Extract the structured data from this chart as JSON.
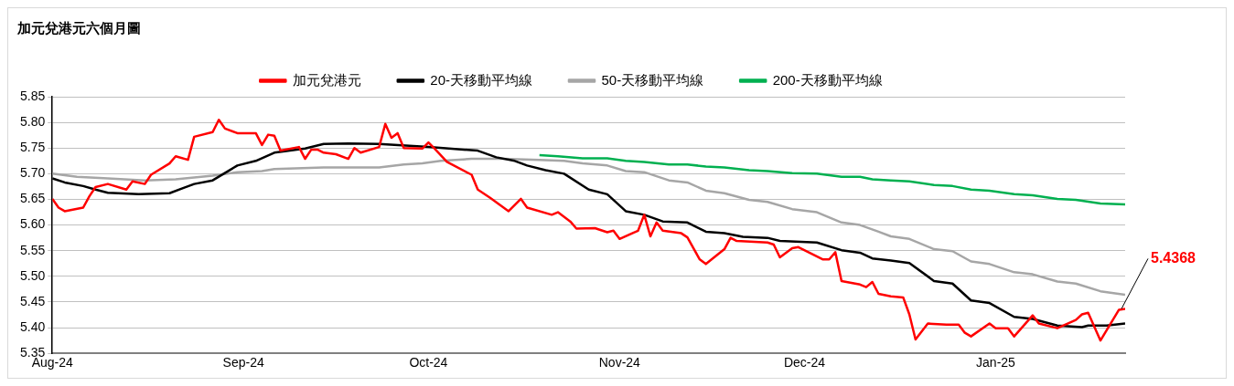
{
  "chart_data": {
    "type": "line",
    "title": "加元兌港元六個月圖",
    "legend": "top",
    "grid": "y",
    "marker": "none",
    "line_style": "solid",
    "xlim": [
      "2024-08-01",
      "2025-01-22"
    ],
    "xticks": [
      {
        "value": "2024-08-01",
        "label": "Aug-24"
      },
      {
        "value": "2024-09-01",
        "label": "Sep-24"
      },
      {
        "value": "2024-10-01",
        "label": "Oct-24"
      },
      {
        "value": "2024-11-01",
        "label": "Nov-24"
      },
      {
        "value": "2024-12-01",
        "label": "Dec-24"
      },
      {
        "value": "2025-01-01",
        "label": "Jan-25"
      }
    ],
    "ylim": [
      5.35,
      5.85
    ],
    "yticks": [
      5.35,
      {
        "value": 5.4,
        "label": "5.40"
      },
      5.45,
      {
        "value": 5.5,
        "label": "5.50"
      },
      5.55,
      {
        "value": 5.6,
        "label": "5.60"
      },
      5.65,
      {
        "value": 5.7,
        "label": "5.70"
      },
      5.75,
      {
        "value": 5.8,
        "label": "5.80"
      },
      5.85
    ],
    "annotations": [
      {
        "text": "5.4368",
        "x": "2025-01-22",
        "y": 5.4368
      }
    ],
    "series": [
      {
        "name": "加元兌港元",
        "color": "#ff0000",
        "x": [
          "2024-08-01",
          "2024-08-02",
          "2024-08-03",
          "2024-08-06",
          "2024-08-07",
          "2024-08-08",
          "2024-08-10",
          "2024-08-13",
          "2024-08-14",
          "2024-08-16",
          "2024-08-17",
          "2024-08-20",
          "2024-08-21",
          "2024-08-23",
          "2024-08-24",
          "2024-08-27",
          "2024-08-28",
          "2024-08-29",
          "2024-08-31",
          "2024-09-03",
          "2024-09-04",
          "2024-09-05",
          "2024-09-06",
          "2024-09-07",
          "2024-09-10",
          "2024-09-11",
          "2024-09-12",
          "2024-09-13",
          "2024-09-14",
          "2024-09-16",
          "2024-09-18",
          "2024-09-19",
          "2024-09-20",
          "2024-09-23",
          "2024-09-24",
          "2024-09-25",
          "2024-09-26",
          "2024-09-27",
          "2024-09-30",
          "2024-10-01",
          "2024-10-02",
          "2024-10-04",
          "2024-10-08",
          "2024-10-09",
          "2024-10-11",
          "2024-10-14",
          "2024-10-16",
          "2024-10-17",
          "2024-10-21",
          "2024-10-22",
          "2024-10-24",
          "2024-10-25",
          "2024-10-28",
          "2024-10-30",
          "2024-10-31",
          "2024-11-01",
          "2024-11-04",
          "2024-11-05",
          "2024-11-06",
          "2024-11-07",
          "2024-11-08",
          "2024-11-11",
          "2024-11-12",
          "2024-11-14",
          "2024-11-15",
          "2024-11-18",
          "2024-11-19",
          "2024-11-20",
          "2024-11-25",
          "2024-11-26",
          "2024-11-27",
          "2024-11-29",
          "2024-11-30",
          "2024-12-04",
          "2024-12-05",
          "2024-12-06",
          "2024-12-07",
          "2024-12-10",
          "2024-12-11",
          "2024-12-12",
          "2024-12-13",
          "2024-12-15",
          "2024-12-17",
          "2024-12-18",
          "2024-12-19",
          "2024-12-21",
          "2024-12-24",
          "2024-12-26",
          "2024-12-27",
          "2024-12-28",
          "2024-12-31",
          "2025-01-01",
          "2025-01-03",
          "2025-01-04",
          "2025-01-07",
          "2025-01-08",
          "2025-01-11",
          "2025-01-14",
          "2025-01-15",
          "2025-01-16",
          "2025-01-18",
          "2025-01-21",
          "2025-01-22"
        ],
        "values": [
          5.651,
          5.634,
          5.627,
          5.634,
          5.656,
          5.674,
          5.68,
          5.669,
          5.685,
          5.68,
          5.698,
          5.72,
          5.734,
          5.727,
          5.772,
          5.781,
          5.805,
          5.788,
          5.779,
          5.779,
          5.756,
          5.776,
          5.774,
          5.745,
          5.752,
          5.729,
          5.747,
          5.747,
          5.741,
          5.738,
          5.729,
          5.75,
          5.741,
          5.752,
          5.797,
          5.77,
          5.779,
          5.75,
          5.749,
          5.761,
          5.749,
          5.723,
          5.698,
          5.669,
          5.653,
          5.627,
          5.651,
          5.634,
          5.62,
          5.625,
          5.607,
          5.593,
          5.594,
          5.586,
          5.589,
          5.573,
          5.589,
          5.62,
          5.578,
          5.605,
          5.589,
          5.584,
          5.576,
          5.533,
          5.524,
          5.553,
          5.575,
          5.569,
          5.566,
          5.562,
          5.537,
          5.555,
          5.557,
          5.533,
          5.533,
          5.547,
          5.491,
          5.484,
          5.479,
          5.489,
          5.466,
          5.461,
          5.459,
          5.426,
          5.377,
          5.408,
          5.406,
          5.406,
          5.39,
          5.383,
          5.408,
          5.399,
          5.399,
          5.383,
          5.424,
          5.408,
          5.399,
          5.415,
          5.426,
          5.429,
          5.375,
          5.435,
          5.4368
        ]
      },
      {
        "name": "20-天移動平均線",
        "color": "#000000",
        "x": [
          "2024-08-01",
          "2024-08-03",
          "2024-08-06",
          "2024-08-08",
          "2024-08-10",
          "2024-08-15",
          "2024-08-20",
          "2024-08-22",
          "2024-08-24",
          "2024-08-27",
          "2024-08-31",
          "2024-09-03",
          "2024-09-06",
          "2024-09-11",
          "2024-09-14",
          "2024-09-18",
          "2024-09-23",
          "2024-10-01",
          "2024-10-09",
          "2024-10-12",
          "2024-10-15",
          "2024-10-17",
          "2024-10-20",
          "2024-10-23",
          "2024-10-27",
          "2024-10-30",
          "2024-11-02",
          "2024-11-05",
          "2024-11-08",
          "2024-11-12",
          "2024-11-15",
          "2024-11-18",
          "2024-11-21",
          "2024-11-25",
          "2024-11-27",
          "2024-12-03",
          "2024-12-07",
          "2024-12-10",
          "2024-12-12",
          "2024-12-15",
          "2024-12-18",
          "2024-12-22",
          "2024-12-25",
          "2024-12-28",
          "2024-12-31",
          "2025-01-04",
          "2025-01-07",
          "2025-01-11",
          "2025-01-15",
          "2025-01-16",
          "2025-01-19",
          "2025-01-22"
        ],
        "values": [
          5.691,
          5.683,
          5.676,
          5.669,
          5.663,
          5.66,
          5.662,
          5.671,
          5.68,
          5.687,
          5.716,
          5.725,
          5.741,
          5.749,
          5.758,
          5.759,
          5.758,
          5.752,
          5.745,
          5.732,
          5.725,
          5.716,
          5.707,
          5.7,
          5.669,
          5.66,
          5.627,
          5.62,
          5.607,
          5.605,
          5.587,
          5.584,
          5.577,
          5.575,
          5.569,
          5.566,
          5.551,
          5.546,
          5.535,
          5.531,
          5.526,
          5.491,
          5.486,
          5.453,
          5.448,
          5.421,
          5.417,
          5.404,
          5.401,
          5.404,
          5.404,
          5.408
        ]
      },
      {
        "name": "50-天移動平均線",
        "color": "#a6a6a6",
        "x": [
          "2024-08-01",
          "2024-08-05",
          "2024-08-10",
          "2024-08-16",
          "2024-08-21",
          "2024-08-27",
          "2024-08-31",
          "2024-09-04",
          "2024-09-06",
          "2024-09-14",
          "2024-09-23",
          "2024-09-27",
          "2024-09-30",
          "2024-10-03",
          "2024-10-08",
          "2024-10-13",
          "2024-10-19",
          "2024-10-23",
          "2024-10-26",
          "2024-10-30",
          "2024-11-02",
          "2024-11-05",
          "2024-11-09",
          "2024-11-12",
          "2024-11-15",
          "2024-11-18",
          "2024-11-22",
          "2024-11-25",
          "2024-11-29",
          "2024-12-03",
          "2024-12-07",
          "2024-12-10",
          "2024-12-13",
          "2024-12-15",
          "2024-12-18",
          "2024-12-22",
          "2024-12-25",
          "2024-12-28",
          "2024-12-31",
          "2025-01-04",
          "2025-01-07",
          "2025-01-11",
          "2025-01-14",
          "2025-01-18",
          "2025-01-22"
        ],
        "values": [
          5.7,
          5.694,
          5.691,
          5.687,
          5.689,
          5.696,
          5.703,
          5.705,
          5.709,
          5.712,
          5.712,
          5.718,
          5.72,
          5.725,
          5.729,
          5.729,
          5.727,
          5.725,
          5.72,
          5.716,
          5.705,
          5.703,
          5.687,
          5.683,
          5.667,
          5.662,
          5.649,
          5.645,
          5.631,
          5.625,
          5.605,
          5.6,
          5.587,
          5.578,
          5.573,
          5.553,
          5.549,
          5.529,
          5.524,
          5.508,
          5.504,
          5.49,
          5.486,
          5.471,
          5.464
        ]
      },
      {
        "name": "200-天移動平均線",
        "color": "#00b050",
        "x": [
          "2024-10-19",
          "2024-10-22",
          "2024-10-26",
          "2024-10-30",
          "2024-11-02",
          "2024-11-05",
          "2024-11-09",
          "2024-11-12",
          "2024-11-15",
          "2024-11-18",
          "2024-11-22",
          "2024-11-25",
          "2024-11-29",
          "2024-12-03",
          "2024-12-07",
          "2024-12-10",
          "2024-12-12",
          "2024-12-15",
          "2024-12-18",
          "2024-12-22",
          "2024-12-25",
          "2024-12-28",
          "2024-12-31",
          "2025-01-04",
          "2025-01-07",
          "2025-01-11",
          "2025-01-14",
          "2025-01-18",
          "2025-01-22"
        ],
        "values": [
          5.736,
          5.734,
          5.73,
          5.73,
          5.725,
          5.723,
          5.718,
          5.718,
          5.714,
          5.712,
          5.707,
          5.705,
          5.701,
          5.7,
          5.694,
          5.694,
          5.689,
          5.687,
          5.685,
          5.678,
          5.676,
          5.669,
          5.667,
          5.66,
          5.658,
          5.651,
          5.649,
          5.642,
          5.64
        ]
      }
    ]
  }
}
